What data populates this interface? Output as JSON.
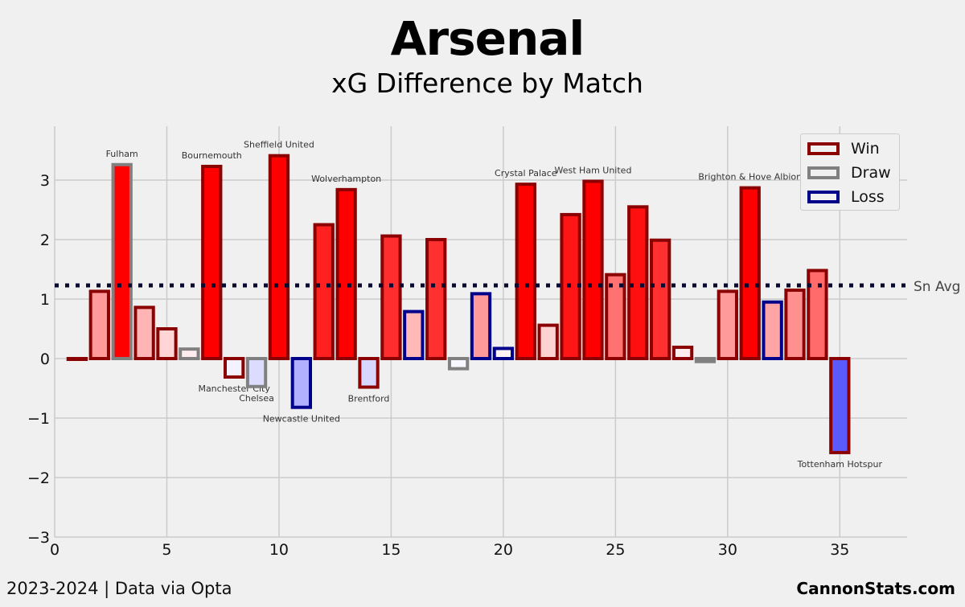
{
  "header": {
    "title": "Arsenal",
    "subtitle": "xG Difference by Match"
  },
  "footer": {
    "left": "2023-2024 | Data via Opta",
    "right": "CannonStats.com"
  },
  "legend": {
    "items": [
      {
        "label": "Win",
        "color": "#8b0000"
      },
      {
        "label": "Draw",
        "color": "#808080"
      },
      {
        "label": "Loss",
        "color": "#00008b"
      }
    ]
  },
  "avg_label": "Sn Avg",
  "chart_data": {
    "type": "bar",
    "xlim": [
      0,
      38
    ],
    "ylim": [
      -3,
      4
    ],
    "xticks": [
      0,
      5,
      10,
      15,
      20,
      25,
      30,
      35
    ],
    "yticks": [
      -3,
      -2,
      -1,
      0,
      1,
      2,
      3
    ],
    "ytick_labels": [
      "−3",
      "−2",
      "−1",
      "0",
      "1",
      "2",
      "3"
    ],
    "season_average": 1.23,
    "grid": true,
    "legend_placement": "top-right",
    "colors": {
      "win_edge": "#8b0000",
      "draw_edge": "#808080",
      "loss_edge": "#00008b"
    },
    "bars": [
      {
        "x": 1,
        "value": 0.0,
        "result": "Win",
        "fill": "#ffeaea"
      },
      {
        "x": 2,
        "value": 1.13,
        "result": "Win",
        "fill": "#ff9a9a"
      },
      {
        "x": 3,
        "value": 3.26,
        "result": "Draw",
        "fill": "#ff0000",
        "label": "Fulham"
      },
      {
        "x": 4,
        "value": 0.86,
        "result": "Win",
        "fill": "#ffb5b5"
      },
      {
        "x": 5,
        "value": 0.5,
        "result": "Win",
        "fill": "#ffd5d5"
      },
      {
        "x": 6,
        "value": 0.16,
        "result": "Draw",
        "fill": "#ffeded"
      },
      {
        "x": 7,
        "value": 3.23,
        "result": "Win",
        "fill": "#ff0000",
        "label": "Bournemouth"
      },
      {
        "x": 8,
        "value": -0.31,
        "result": "Win",
        "fill": "#f3f3ff",
        "label": "Manchester City"
      },
      {
        "x": 9,
        "value": -0.47,
        "result": "Draw",
        "fill": "#dcdcff",
        "label": "Chelsea"
      },
      {
        "x": 10,
        "value": 3.41,
        "result": "Win",
        "fill": "#ff0000",
        "label": "Sheffield United"
      },
      {
        "x": 11,
        "value": -0.82,
        "result": "Loss",
        "fill": "#b0b0ff",
        "label": "Newcastle United"
      },
      {
        "x": 12,
        "value": 2.25,
        "result": "Win",
        "fill": "#ff2020"
      },
      {
        "x": 13,
        "value": 2.84,
        "result": "Win",
        "fill": "#ff0000",
        "label": "Wolverhampton"
      },
      {
        "x": 14,
        "value": -0.48,
        "result": "Win",
        "fill": "#d6d6ff",
        "label": "Brentford"
      },
      {
        "x": 15,
        "value": 2.06,
        "result": "Win",
        "fill": "#ff2d2d"
      },
      {
        "x": 16,
        "value": 0.79,
        "result": "Loss",
        "fill": "#ffb9b9"
      },
      {
        "x": 17,
        "value": 2.0,
        "result": "Win",
        "fill": "#ff3030"
      },
      {
        "x": 18,
        "value": -0.17,
        "result": "Draw",
        "fill": "#f7f7ff"
      },
      {
        "x": 19,
        "value": 1.09,
        "result": "Loss",
        "fill": "#ff9a9a"
      },
      {
        "x": 20,
        "value": 0.17,
        "result": "Loss",
        "fill": "#fff3f3"
      },
      {
        "x": 21,
        "value": 2.93,
        "result": "Win",
        "fill": "#ff0000",
        "label": "Crystal Palace"
      },
      {
        "x": 22,
        "value": 0.56,
        "result": "Win",
        "fill": "#ffd2d2"
      },
      {
        "x": 23,
        "value": 2.42,
        "result": "Win",
        "fill": "#ff1515"
      },
      {
        "x": 24,
        "value": 2.98,
        "result": "Win",
        "fill": "#ff0000",
        "label": "West Ham United"
      },
      {
        "x": 25,
        "value": 1.41,
        "result": "Win",
        "fill": "#ff7272"
      },
      {
        "x": 26,
        "value": 2.55,
        "result": "Win",
        "fill": "#ff1010"
      },
      {
        "x": 27,
        "value": 1.99,
        "result": "Win",
        "fill": "#ff3030"
      },
      {
        "x": 28,
        "value": 0.19,
        "result": "Win",
        "fill": "#ffeded"
      },
      {
        "x": 29,
        "value": -0.05,
        "result": "Draw",
        "fill": "#fcfcff"
      },
      {
        "x": 30,
        "value": 1.13,
        "result": "Win",
        "fill": "#ff9a9a"
      },
      {
        "x": 31,
        "value": 2.87,
        "result": "Win",
        "fill": "#ff0000",
        "label": "Brighton & Hove Albion"
      },
      {
        "x": 32,
        "value": 0.95,
        "result": "Loss",
        "fill": "#ffa5a5"
      },
      {
        "x": 33,
        "value": 1.15,
        "result": "Win",
        "fill": "#ff9090"
      },
      {
        "x": 34,
        "value": 1.48,
        "result": "Win",
        "fill": "#ff6a6a"
      },
      {
        "x": 35,
        "value": -1.58,
        "result": "Win",
        "fill": "#5a5aff",
        "label": "Tottenham Hotspur"
      }
    ]
  }
}
